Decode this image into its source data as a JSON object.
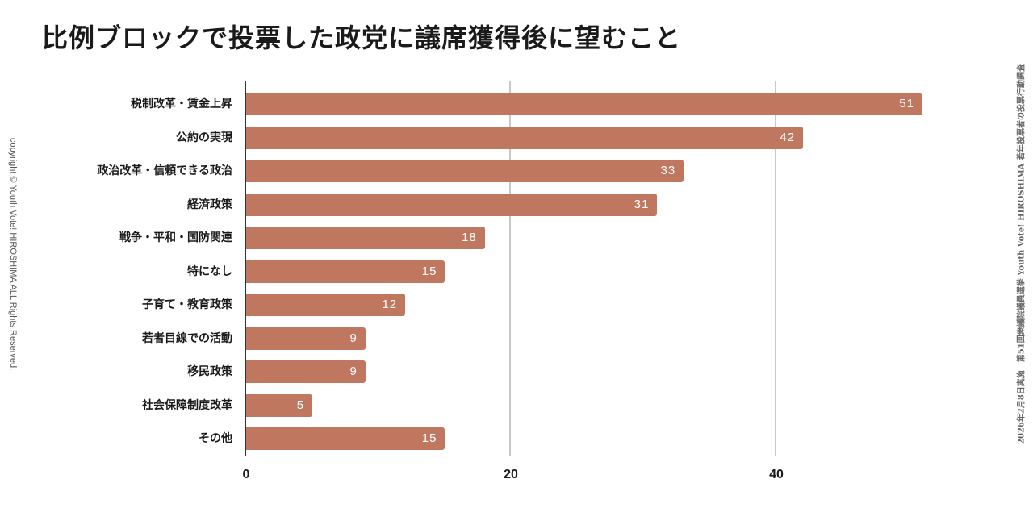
{
  "title": "比例ブロックで投票した政党に議席獲得後に望むこと",
  "side_text_left": "copyright © Youth Vote! HIROSHIMA ALL Rights Reserved.",
  "side_text_right": "2026年2月8日実施　第51回衆議院議員選挙 Youth Vote! HIROSHIMA 若年投票者の投票行動調査",
  "colors": {
    "bar": "#c07760",
    "grid": "#c8c8c8",
    "axis": "#333333"
  },
  "chart_data": {
    "type": "bar",
    "orientation": "horizontal",
    "title": "比例ブロックで投票した政党に議席獲得後に望むこと",
    "xlabel": "",
    "ylabel": "",
    "categories": [
      "税制改革・賃金上昇",
      "公約の実現",
      "政治改革・信頼できる政治",
      "経済政策",
      "戦争・平和・国防関連",
      "特になし",
      "子育て・教育政策",
      "若者目線での活動",
      "移民政策",
      "社会保障制度改革",
      "その他"
    ],
    "values": [
      51,
      42,
      33,
      31,
      18,
      15,
      12,
      9,
      9,
      5,
      15
    ],
    "xlim": [
      0,
      52
    ],
    "xticks": [
      "0",
      "20",
      "40"
    ],
    "grid": true,
    "legend": null
  }
}
